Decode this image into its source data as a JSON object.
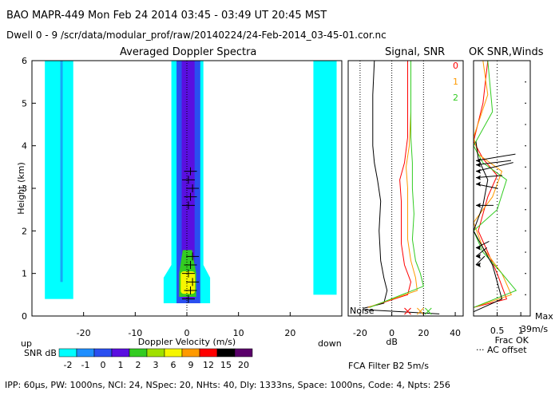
{
  "header": {
    "line1": "BAO  MAPR-449  Mon Feb 24 2014 03:45 - 03:49 UT 20:45 MST",
    "line2": "Dwell  0 - 9   /scr/data/modular_prof/raw/20140224/24-Feb-2014_03-45-01.cor.nc"
  },
  "footer": "IPP: 60µs,  PW: 1000ns,  NCI: 24,  NSpec: 20, NHts: 40,  Dly: 1333ns,  Space: 1000ns,  Code: 4,  Npts: 256",
  "fca_text": "FCA Filter B2  5m/s",
  "colors": {
    "cyan": "#00ffff",
    "blue": "#2a4ff0",
    "indigo": "#5a0fe0",
    "green": "#33cc22",
    "yellow": "#f6f600",
    "orange": "#ff9a00",
    "red": "#ff0000",
    "black": "#000000",
    "purple": "#5a006a",
    "noise_line": "#000000"
  },
  "chart_data": [
    {
      "type": "heatmap",
      "title": "Averaged Doppler Spectra",
      "xlabel": "Doppler Velocity (m/s)",
      "ylabel": "Height (km)",
      "xlim": [
        -30,
        30
      ],
      "ylim": [
        0,
        6
      ],
      "xticks": [
        -20,
        -10,
        0,
        10,
        20
      ],
      "yticks": [
        0,
        1,
        2,
        3,
        4,
        5,
        6
      ],
      "x_left_label": "up",
      "x_right_label": "down",
      "colorbar": {
        "label": "SNR dB",
        "values": [
          "-2",
          "-1",
          "0",
          "1",
          "2",
          "3",
          "6",
          "9",
          "12",
          "15",
          "20"
        ],
        "colors": [
          "#00ffff",
          "#1f8fff",
          "#2a4ff0",
          "#5a0fe0",
          "#33cc22",
          "#a0e000",
          "#f6f600",
          "#ff9a00",
          "#ff0000",
          "#000000",
          "#5a006a"
        ]
      },
      "bands": [
        {
          "name": "left-alias",
          "x": [
            -27.5,
            -22
          ],
          "y": [
            0.4,
            6.0
          ],
          "level": "-2"
        },
        {
          "name": "central",
          "x": [
            -1.8,
            2.5
          ],
          "y": [
            0.3,
            6.0
          ],
          "level": "0"
        },
        {
          "name": "right-alias",
          "x": [
            24.5,
            29
          ],
          "y": [
            0.4,
            6.0
          ],
          "level": "-2"
        },
        {
          "name": "core",
          "x": [
            -1.2,
            1.8
          ],
          "y": [
            0.5,
            1.5
          ],
          "level": "3"
        }
      ]
    },
    {
      "type": "line",
      "title": "Signal, SNR",
      "xlabel": "dB",
      "xlim": [
        -20,
        40
      ],
      "ylim": [
        0,
        6
      ],
      "xticks": [
        -20,
        0,
        20,
        40
      ],
      "noise_label": "Noise",
      "legend": [
        "0",
        "1",
        "2"
      ],
      "legend_colors": [
        "#ff0000",
        "#ff9a00",
        "#33cc22"
      ],
      "series": [
        {
          "name": "signal",
          "color": "#000000",
          "points": [
            [
              -18,
              0.18
            ],
            [
              -5,
              0.3
            ],
            [
              -3,
              0.6
            ],
            [
              -5,
              0.9
            ],
            [
              -7,
              1.3
            ],
            [
              -8,
              2.0
            ],
            [
              -7,
              2.7
            ],
            [
              -9,
              3.2
            ],
            [
              -11,
              3.6
            ],
            [
              -12,
              4.0
            ],
            [
              -12,
              4.6
            ],
            [
              -12,
              5.2
            ],
            [
              -11,
              6.0
            ]
          ]
        },
        {
          "name": "snr-0",
          "color": "#ff0000",
          "points": [
            [
              -15,
              0.2
            ],
            [
              10,
              0.5
            ],
            [
              12,
              0.8
            ],
            [
              8,
              1.2
            ],
            [
              6,
              1.7
            ],
            [
              6,
              2.2
            ],
            [
              6,
              2.7
            ],
            [
              5,
              3.2
            ],
            [
              8,
              3.6
            ],
            [
              10,
              4.2
            ],
            [
              10,
              5.0
            ],
            [
              10,
              6.0
            ]
          ]
        },
        {
          "name": "snr-1",
          "color": "#ff9a00",
          "points": [
            [
              -15,
              0.2
            ],
            [
              16,
              0.6
            ],
            [
              15,
              0.9
            ],
            [
              12,
              1.3
            ],
            [
              10,
              1.8
            ],
            [
              10,
              2.4
            ],
            [
              10,
              3.0
            ],
            [
              9,
              3.5
            ],
            [
              11,
              4.0
            ],
            [
              12,
              4.8
            ],
            [
              12,
              6.0
            ]
          ]
        },
        {
          "name": "snr-2",
          "color": "#33cc22",
          "points": [
            [
              -14,
              0.2
            ],
            [
              20,
              0.7
            ],
            [
              18,
              1.0
            ],
            [
              15,
              1.3
            ],
            [
              13,
              1.8
            ],
            [
              14,
              2.4
            ],
            [
              13,
              3.0
            ],
            [
              13,
              3.6
            ],
            [
              12,
              4.2
            ],
            [
              12,
              5.0
            ],
            [
              12,
              6.0
            ]
          ]
        }
      ],
      "noise_levels": [
        {
          "x": 10,
          "color": "#ff0000"
        },
        {
          "x": 18,
          "color": "#ff9a00"
        },
        {
          "x": 23,
          "color": "#33cc22"
        }
      ]
    },
    {
      "type": "line",
      "title": "OK  SNR,Winds",
      "xlabel": "Frac OK",
      "xlim": [
        0,
        1.2
      ],
      "ylim": [
        0,
        6
      ],
      "xticks": [
        0.5,
        1
      ],
      "max_label": "Max",
      "max_value": "39m/s",
      "frac_label": "Frac OK",
      "ac_label": "··· AC offset",
      "series": [
        {
          "name": "frac-0",
          "color": "#ff0000",
          "points": [
            [
              0,
              0.2
            ],
            [
              0.7,
              0.4
            ],
            [
              0.5,
              1.0
            ],
            [
              0.3,
              1.5
            ],
            [
              0.1,
              2.0
            ],
            [
              0.3,
              2.8
            ],
            [
              0.5,
              3.3
            ],
            [
              0.2,
              3.7
            ],
            [
              0.0,
              4.1
            ],
            [
              0.2,
              5.0
            ],
            [
              0.3,
              6.0
            ]
          ]
        },
        {
          "name": "frac-1",
          "color": "#ff9a00",
          "points": [
            [
              0,
              0.2
            ],
            [
              0.8,
              0.5
            ],
            [
              0.6,
              1.0
            ],
            [
              0.2,
              1.6
            ],
            [
              0.0,
              2.2
            ],
            [
              0.4,
              2.8
            ],
            [
              0.6,
              3.4
            ],
            [
              0.1,
              3.8
            ],
            [
              0.0,
              4.2
            ],
            [
              0.3,
              5.2
            ],
            [
              0.2,
              6.0
            ]
          ]
        },
        {
          "name": "frac-2",
          "color": "#33cc22",
          "points": [
            [
              0,
              0.2
            ],
            [
              0.9,
              0.6
            ],
            [
              0.6,
              1.0
            ],
            [
              0.2,
              1.5
            ],
            [
              0.0,
              2.0
            ],
            [
              0.5,
              2.5
            ],
            [
              0.7,
              3.2
            ],
            [
              0.2,
              3.6
            ],
            [
              0.0,
              4.0
            ],
            [
              0.4,
              4.8
            ],
            [
              0.3,
              6.0
            ]
          ]
        },
        {
          "name": "snr-k",
          "color": "#000000",
          "points": [
            [
              0,
              0.1
            ],
            [
              0.6,
              0.4
            ],
            [
              0.4,
              1.2
            ],
            [
              0.1,
              1.8
            ],
            [
              0.0,
              2.0
            ],
            [
              0.2,
              2.6
            ],
            [
              0.3,
              3.2
            ],
            [
              0.1,
              3.7
            ],
            [
              0.05,
              4.1
            ]
          ]
        }
      ],
      "winds": [
        {
          "h": 3.65,
          "u": 0.9,
          "v": 0.15
        },
        {
          "h": 3.55,
          "u": 0.8,
          "v": 0.1
        },
        {
          "h": 3.4,
          "u": 0.85,
          "v": 0.2
        },
        {
          "h": 3.25,
          "u": 0.6,
          "v": 0.05
        },
        {
          "h": 3.1,
          "u": 0.5,
          "v": -0.1
        },
        {
          "h": 2.6,
          "u": 0.4,
          "v": 0.0
        },
        {
          "h": 1.6,
          "u": 0.3,
          "v": 0.15
        },
        {
          "h": 1.4,
          "u": 0.25,
          "v": 0.2
        },
        {
          "h": 1.2,
          "u": 0.2,
          "v": 0.2
        }
      ]
    }
  ]
}
